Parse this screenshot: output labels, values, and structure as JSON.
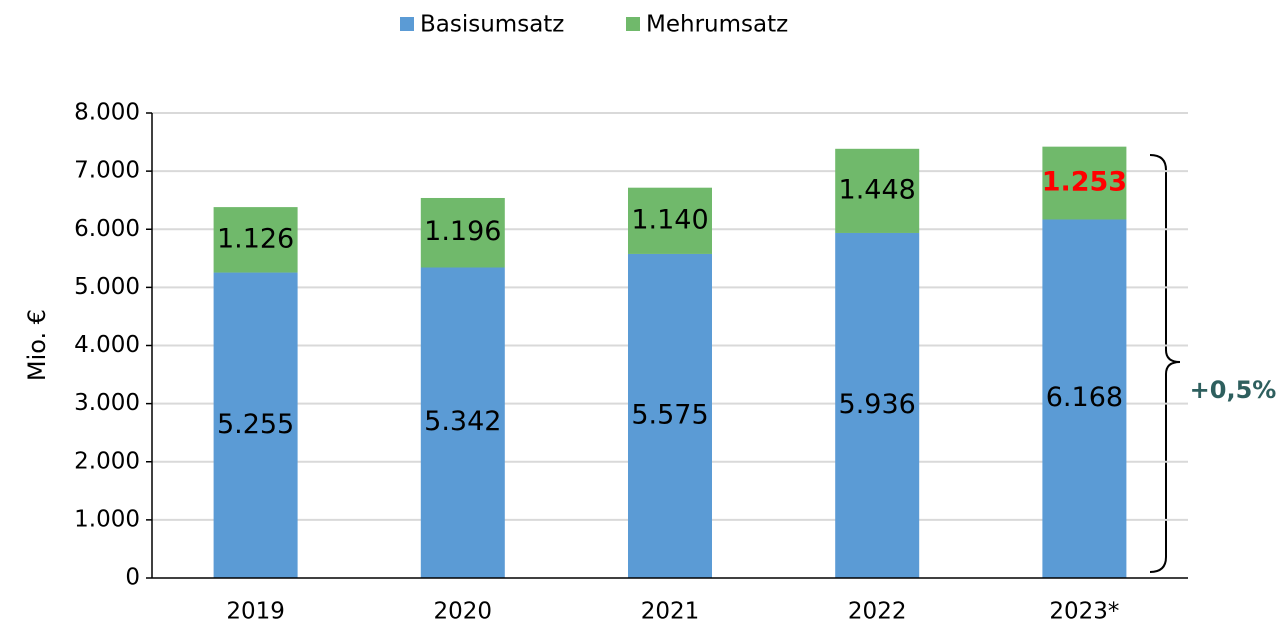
{
  "chart_data": {
    "type": "stacked_bar",
    "categories": [
      "2019",
      "2020",
      "2021",
      "2022",
      "2023*"
    ],
    "series": [
      {
        "name": "Basisumsatz",
        "color": "#5b9bd5",
        "values": [
          5255,
          5342,
          5575,
          5936,
          6168
        ],
        "value_labels": [
          "5.255",
          "5.342",
          "5.575",
          "5.936",
          "6.168"
        ],
        "label_colors": [
          "#000000",
          "#000000",
          "#000000",
          "#000000",
          "#000000"
        ]
      },
      {
        "name": "Mehrumsatz",
        "color": "#70b96b",
        "values": [
          1126,
          1196,
          1140,
          1448,
          1253
        ],
        "value_labels": [
          "1.126",
          "1.196",
          "1.140",
          "1.448",
          "1.253"
        ],
        "label_colors": [
          "#000000",
          "#000000",
          "#000000",
          "#000000",
          "#ff0000"
        ]
      }
    ],
    "ylabel": "Mio. €",
    "ylim": [
      0,
      8000
    ],
    "yticks": [
      0,
      {
        "value": 1000,
        "label": "1.000"
      },
      {
        "value": 2000,
        "label": "2.000"
      },
      {
        "value": 3000,
        "label": "3.000"
      },
      {
        "value": 4000,
        "label": "4.000"
      },
      {
        "value": 5000,
        "label": "5.000"
      },
      {
        "value": 6000,
        "label": "6.000"
      },
      {
        "value": 7000,
        "label": "7.000"
      },
      {
        "value": 8000,
        "label": "8.000"
      }
    ],
    "grid": true,
    "legend": "top",
    "annotation": "+0,5%"
  }
}
